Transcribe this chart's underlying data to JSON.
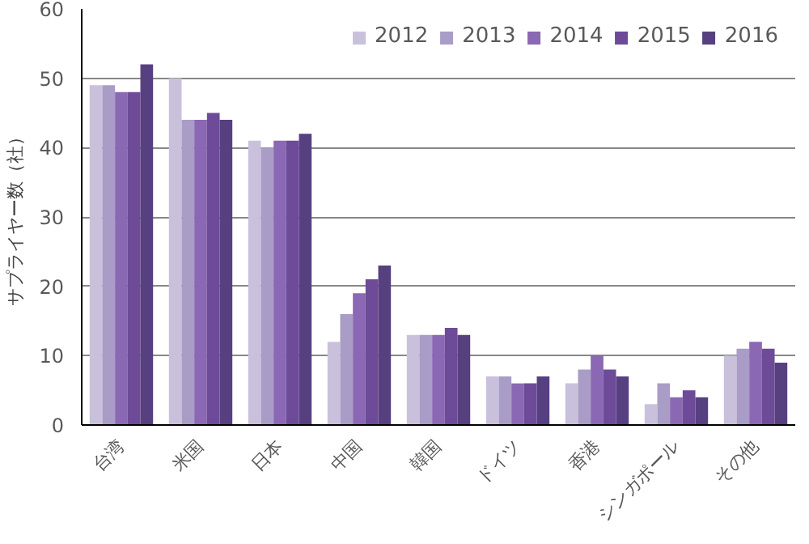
{
  "chart_data": {
    "type": "bar",
    "ylabel": "サプライヤー数（社）",
    "categories": [
      "台湾",
      "米国",
      "日本",
      "中国",
      "韓国",
      "ドイツ",
      "香港",
      "シンガポール",
      "その他"
    ],
    "series": [
      {
        "name": "2012",
        "color": "#c9c1dc",
        "values": [
          49,
          50,
          41,
          12,
          13,
          7,
          6,
          3,
          10
        ]
      },
      {
        "name": "2013",
        "color": "#a99cc6",
        "values": [
          49,
          44,
          40,
          16,
          13,
          7,
          8,
          6,
          11
        ]
      },
      {
        "name": "2014",
        "color": "#8a68b4",
        "values": [
          48,
          44,
          41,
          19,
          13,
          6,
          10,
          4,
          12
        ]
      },
      {
        "name": "2015",
        "color": "#6d4b98",
        "values": [
          48,
          45,
          41,
          21,
          14,
          6,
          8,
          5,
          11
        ]
      },
      {
        "name": "2016",
        "color": "#574080",
        "values": [
          52,
          44,
          42,
          23,
          13,
          7,
          7,
          4,
          9
        ]
      }
    ],
    "ylim": [
      0,
      60
    ],
    "yticks": [
      0,
      10,
      20,
      30,
      40,
      50,
      60
    ],
    "grid": "y",
    "legend": "top right"
  }
}
